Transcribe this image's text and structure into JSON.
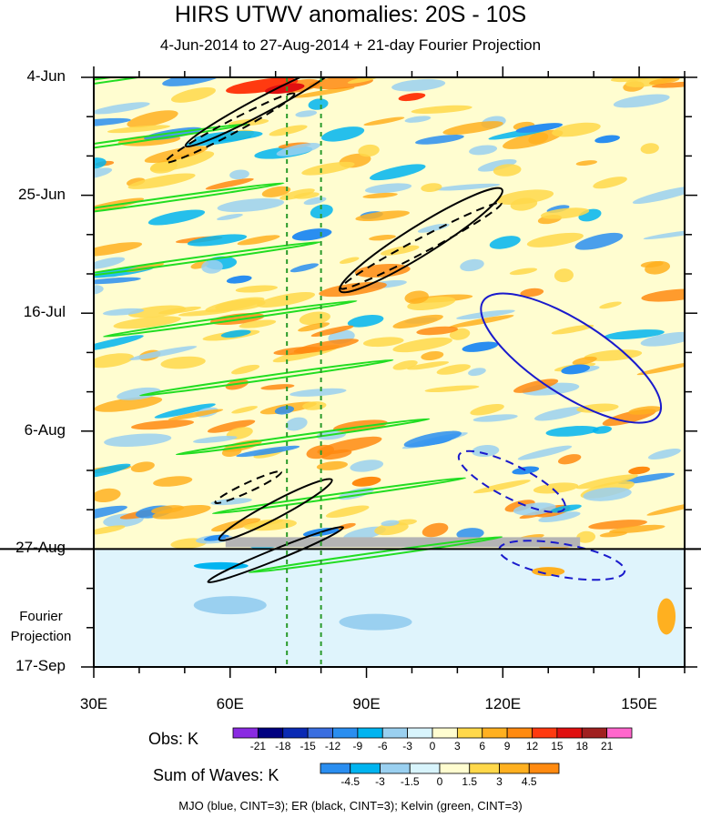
{
  "chart_data": {
    "type": "heatmap",
    "title": "HIRS UTWV anomalies: 20S - 10S",
    "subtitle": "4-Jun-2014 to 27-Aug-2014 + 21-day Fourier Projection",
    "x_tick_labels": [
      "30E",
      "60E",
      "90E",
      "120E",
      "150E"
    ],
    "x_ticks_deg": [
      30,
      60,
      90,
      120,
      150
    ],
    "xlim_deg": [
      30,
      160
    ],
    "y_tick_labels": [
      "4-Jun",
      "25-Jun",
      "16-Jul",
      "6-Aug",
      "27-Aug",
      "17-Sep"
    ],
    "y_ticks_day": [
      0,
      21,
      42,
      63,
      84,
      105
    ],
    "ylim_day": [
      0,
      105
    ],
    "obs_end_day": 84,
    "fourier_label": "Fourier\nProjection",
    "reference_lines_deg": [
      72.5,
      80
    ],
    "obs_legend": {
      "label": "Obs: K",
      "levels": [
        "-21",
        "-18",
        "-15",
        "-12",
        "-9",
        "-6",
        "-3",
        "0",
        "3",
        "6",
        "9",
        "12",
        "15",
        "18",
        "21"
      ],
      "colors": [
        "#8a2be2",
        "#000080",
        "#0a2ab4",
        "#3a6ee0",
        "#2a8ef0",
        "#00b4f0",
        "#9ad0f0",
        "#d8f4fc",
        "#fffdd0",
        "#ffd84a",
        "#ffb020",
        "#ff8a10",
        "#ff3a10",
        "#e01010",
        "#a02020",
        "#ff66cc"
      ]
    },
    "waves_legend": {
      "label": "Sum of Waves: K",
      "levels": [
        "-4.5",
        "-3",
        "-1.5",
        "0",
        "1.5",
        "3",
        "4.5"
      ],
      "colors": [
        "#2a8ef0",
        "#00b4f0",
        "#9ad0f0",
        "#d8f4fc",
        "#fffdd0",
        "#ffd84a",
        "#ffb020",
        "#ff8a10"
      ]
    },
    "contour_legend_text": "MJO (blue, CINT=3); ER (black, CINT=3); Kelvin (green, CINT=3)",
    "mjo_color": "#1a1acc",
    "er_color": "#000000",
    "kelvin_color": "#22dd22",
    "projection_band_color": "#dff4fc",
    "background_anomaly_color": "#fffdd0",
    "grey_missing_color": "#b4b4b4"
  }
}
